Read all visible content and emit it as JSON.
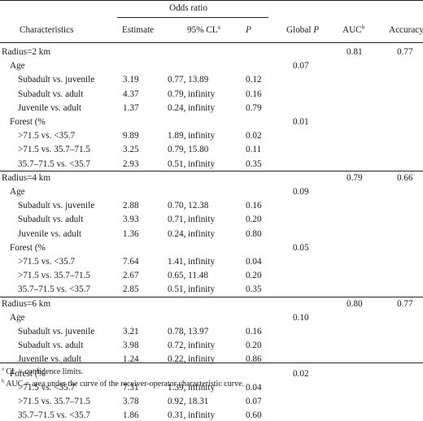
{
  "header": {
    "group_label": "Odds ratio",
    "characteristics": "Characteristics",
    "estimate": "Estimate",
    "ci": "95% CL",
    "ci_sup": "a",
    "p": "P",
    "global_p_prefix": "Global ",
    "global_p_italic": "P",
    "auc": "AUC",
    "auc_sup": "b",
    "accuracy": "Accuracy"
  },
  "sections": [
    {
      "title": "Radius=2 km",
      "auc": "0.81",
      "accuracy": "0.77",
      "groups": [
        {
          "label": "Age",
          "global_p": "0.07",
          "rows": [
            {
              "label": "Subadult vs. juvenile",
              "estimate": "3.19",
              "ci": "0.77, 13.89",
              "p": "0.12"
            },
            {
              "label": "Subadult vs. adult",
              "estimate": "4.37",
              "ci": "0.79, infinity",
              "p": "0.16"
            },
            {
              "label": "Juvenile vs. adult",
              "estimate": "1.37",
              "ci": "0.24, infinity",
              "p": "0.79"
            }
          ]
        },
        {
          "label": "Forest (%",
          "global_p": "0.01",
          "rows": [
            {
              "label": ">71.5 vs. <35.7",
              "estimate": "9.89",
              "ci": "1.89, infinity",
              "p": "0.02"
            },
            {
              "label": ">71.5 vs. 35.7–71.5",
              "estimate": "3.25",
              "ci": "0.79, 15.80",
              "p": "0.11"
            },
            {
              "label": "35.7–71.5 vs. <35.7",
              "estimate": "2.93",
              "ci": "0.51, infinity",
              "p": "0.35"
            }
          ]
        }
      ]
    },
    {
      "title": "Radius=4 km",
      "auc": "0.79",
      "accuracy": "0.66",
      "groups": [
        {
          "label": "Age",
          "global_p": "0.09",
          "rows": [
            {
              "label": "Subadult vs. juvenile",
              "estimate": "2.88",
              "ci": "0.70, 12.38",
              "p": "0.16"
            },
            {
              "label": "Subadult vs. adult",
              "estimate": "3.93",
              "ci": "0.71, infinity",
              "p": "0.20"
            },
            {
              "label": "Juvenile vs. adult",
              "estimate": "1.36",
              "ci": "0.24, infinity",
              "p": "0.80"
            }
          ]
        },
        {
          "label": "Forest (%",
          "global_p": "0.05",
          "rows": [
            {
              "label": ">71.5 vs. <35.7",
              "estimate": "7.64",
              "ci": "1.41, infinity",
              "p": "0.04"
            },
            {
              "label": ">71.5 vs. 35.7–71.5",
              "estimate": "2.67",
              "ci": "0.65, 11.48",
              "p": "0.20"
            },
            {
              "label": "35.7–71.5 vs. <35.7",
              "estimate": "2.85",
              "ci": "0.51, infinity",
              "p": "0.35"
            }
          ]
        }
      ]
    },
    {
      "title": "Radius=6 km",
      "auc": "0.80",
      "accuracy": "0.77",
      "groups": [
        {
          "label": "Age",
          "global_p": "0.10",
          "rows": [
            {
              "label": "Subadult vs. juvenile",
              "estimate": "3.21",
              "ci": "0.78, 13.97",
              "p": "0.16"
            },
            {
              "label": "Subadult vs. adult",
              "estimate": "3.98",
              "ci": "0.72, infinity",
              "p": "0.20"
            },
            {
              "label": "Juvenile vs. adult",
              "estimate": "1.24",
              "ci": "0.22, infinity",
              "p": "0.86"
            }
          ]
        },
        {
          "label": "Forest (%",
          "global_p": "0.02",
          "rows": [
            {
              "label": ">71.5 vs. <35.7",
              "estimate": "7.31",
              "ci": "1.39, infinity",
              "p": "0.04"
            },
            {
              "label": ">71.5 vs. 35.7–71.5",
              "estimate": "3.78",
              "ci": "0.92, 18.31",
              "p": "0.07"
            },
            {
              "label": "35.7–71.5 vs. <35.7",
              "estimate": "1.86",
              "ci": "0.31, infinity",
              "p": "0.60"
            }
          ]
        }
      ]
    }
  ],
  "footnotes": [
    {
      "sup": "a",
      "text": " CL = confidence limits."
    },
    {
      "sup": "b",
      "text": " AUC = area under the curve of the receiver-operator characteristic curve."
    }
  ]
}
